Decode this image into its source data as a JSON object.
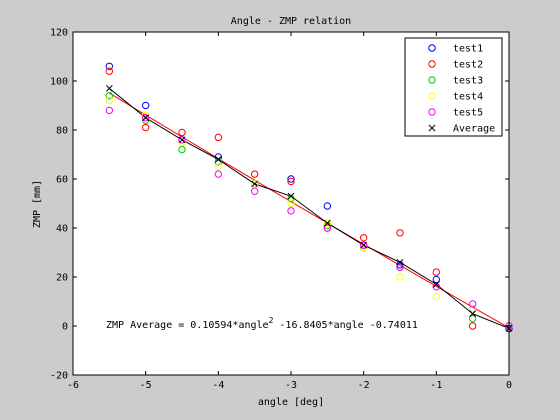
{
  "chart_data": {
    "type": "scatter",
    "title": "Angle - ZMP relation",
    "xlabel": "angle [deg]",
    "ylabel": "ZMP [mm]",
    "xlim": [
      -6,
      0
    ],
    "ylim": [
      -20,
      120
    ],
    "xticks": [
      -6,
      -5,
      -4,
      -3,
      -2,
      -1,
      0
    ],
    "yticks": [
      -20,
      0,
      20,
      40,
      60,
      80,
      100,
      120
    ],
    "x": [
      -5.5,
      -5,
      -4.5,
      -4,
      -3.5,
      -3,
      -2.5,
      -2,
      -1.5,
      -1,
      -0.5,
      0
    ],
    "series": [
      {
        "name": "test1",
        "color": "#0000ff",
        "marker": "circle",
        "values": [
          106,
          90,
          76,
          69,
          58,
          60,
          49,
          33,
          25,
          19,
          7,
          -1
        ]
      },
      {
        "name": "test2",
        "color": "#ff0000",
        "marker": "circle",
        "values": [
          104,
          81,
          79,
          77,
          62,
          59,
          40,
          36,
          38,
          22,
          0,
          0
        ]
      },
      {
        "name": "test3",
        "color": "#00cc00",
        "marker": "circle",
        "values": [
          94,
          84,
          72,
          67,
          58,
          52,
          41,
          32,
          24,
          16,
          3,
          0
        ]
      },
      {
        "name": "test4",
        "color": "#ffff00",
        "marker": "circle",
        "values": [
          92,
          86,
          75,
          65,
          58,
          50,
          42,
          32,
          20,
          12,
          7,
          0
        ]
      },
      {
        "name": "test5",
        "color": "#ff00ff",
        "marker": "circle",
        "values": [
          88,
          85,
          76,
          62,
          55,
          47,
          40,
          33,
          24,
          16,
          9,
          0
        ]
      },
      {
        "name": "Average",
        "color": "#000000",
        "marker": "x",
        "line": true,
        "values": [
          97,
          85,
          76,
          68,
          58,
          53,
          42,
          33,
          26,
          17,
          5,
          -1
        ]
      }
    ],
    "fit": {
      "color": "#ff0000",
      "coefficients": [
        0.10594,
        -16.8405,
        -0.74011
      ],
      "label_prefix": "ZMP Average = 0.10594*angle",
      "label_exponent": "2",
      "label_suffix": " -16.8405*angle -0.74011"
    },
    "legend": {
      "position": "top-right"
    },
    "grid": false
  }
}
